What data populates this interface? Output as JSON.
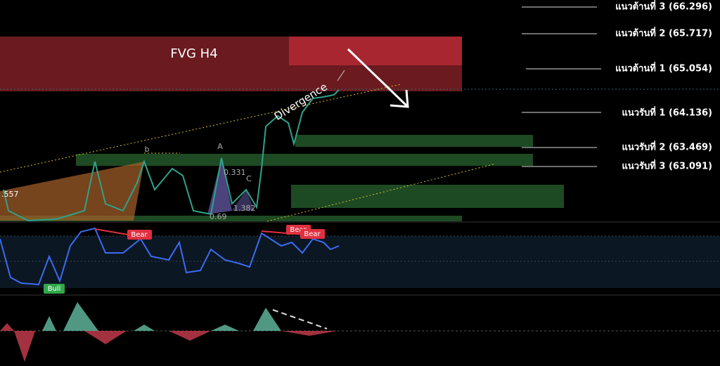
{
  "levels": [
    "แนวต้านที่ 3 (66.296)",
    "แนวต้านที่ 2 (65.717)",
    "แนวต้านที่ 1 (65.054)",
    "แนวรับที่ 1 (64.136)",
    "แนวรับที่ 2  (63.469)",
    "แนวรับที่ 3  (63.091)"
  ],
  "zone_label": "FVG H4",
  "annotations": {
    "divergence": "Divergence",
    "point_b": "b",
    "point_a": "A",
    "point_c": "C",
    "ratio_1": "0.331",
    "ratio_2": "1.382",
    "ratio_3": "0.69",
    "left_price": ".557"
  },
  "rsi_signals": {
    "bear_1": "Bear",
    "bear_2": "Bear",
    "bear_3": "Bear",
    "bull": "Bull"
  }
}
